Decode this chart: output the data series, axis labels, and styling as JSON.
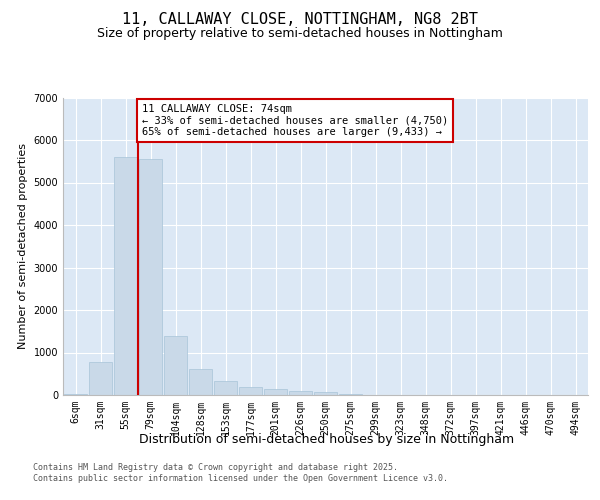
{
  "title_line1": "11, CALLAWAY CLOSE, NOTTINGHAM, NG8 2BT",
  "title_line2": "Size of property relative to semi-detached houses in Nottingham",
  "xlabel": "Distribution of semi-detached houses by size in Nottingham",
  "ylabel": "Number of semi-detached properties",
  "categories": [
    "6sqm",
    "31sqm",
    "55sqm",
    "79sqm",
    "104sqm",
    "128sqm",
    "153sqm",
    "177sqm",
    "201sqm",
    "226sqm",
    "250sqm",
    "275sqm",
    "299sqm",
    "323sqm",
    "348sqm",
    "372sqm",
    "397sqm",
    "421sqm",
    "446sqm",
    "470sqm",
    "494sqm"
  ],
  "values": [
    30,
    780,
    5600,
    5550,
    1400,
    620,
    340,
    180,
    130,
    90,
    60,
    30,
    0,
    0,
    0,
    0,
    0,
    0,
    0,
    0,
    0
  ],
  "bar_color": "#c9d9e8",
  "bar_edge_color": "#a8c4d8",
  "vline_color": "#cc0000",
  "vline_pos": 2.5,
  "annotation_text": "11 CALLAWAY CLOSE: 74sqm\n← 33% of semi-detached houses are smaller (4,750)\n65% of semi-detached houses are larger (9,433) →",
  "annotation_box_color": "#cc0000",
  "ylim": [
    0,
    7000
  ],
  "yticks": [
    0,
    1000,
    2000,
    3000,
    4000,
    5000,
    6000,
    7000
  ],
  "plot_background": "#dce8f5",
  "grid_color": "#ffffff",
  "footer_line1": "Contains HM Land Registry data © Crown copyright and database right 2025.",
  "footer_line2": "Contains public sector information licensed under the Open Government Licence v3.0.",
  "title_fontsize": 11,
  "subtitle_fontsize": 9,
  "tick_fontsize": 7,
  "ylabel_fontsize": 8,
  "xlabel_fontsize": 9,
  "annot_fontsize": 7.5,
  "footer_fontsize": 6
}
